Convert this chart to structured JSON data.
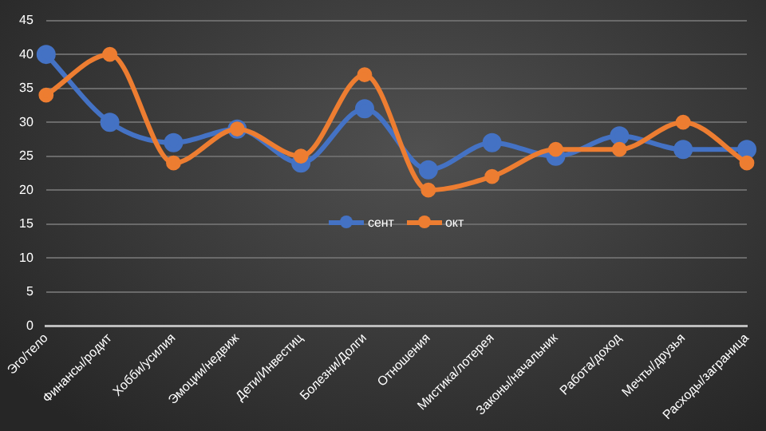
{
  "chart_data": {
    "type": "line",
    "categories": [
      "Эго/тело",
      "Финансы/родит",
      "Хобби/усилия",
      "Эмоции/недвиж",
      "Дети/Инвестиц",
      "Болезни/Долги",
      "Отношения",
      "Мистика/лотерея",
      "Законы/начальник",
      "Работа/доход",
      "Мечты/друзья",
      "Расходы/заграница"
    ],
    "series": [
      {
        "name": "сент",
        "color": "#4472c4",
        "values": [
          40,
          30,
          27,
          29,
          24,
          32,
          23,
          27,
          25,
          28,
          26,
          26
        ]
      },
      {
        "name": "окт",
        "color": "#ed7d31",
        "values": [
          34,
          40,
          24,
          29,
          25,
          37,
          20,
          22,
          26,
          26,
          30,
          24
        ]
      }
    ],
    "ylim": [
      0,
      45
    ],
    "yticks": [
      0,
      5,
      10,
      15,
      20,
      25,
      30,
      35,
      40,
      45
    ],
    "grid": "y",
    "legend": "center",
    "marker": "circle",
    "line_style": "solid"
  }
}
